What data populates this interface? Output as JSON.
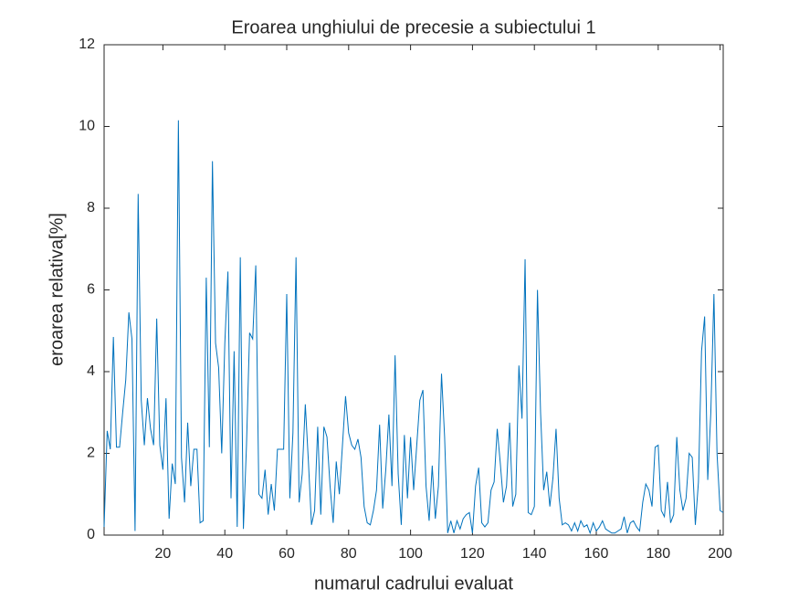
{
  "chart_data": {
    "type": "line",
    "title": "Eroarea unghiului de precesie a subiectului 1",
    "x_label": "numarul cadrului evaluat",
    "y_label": "eroarea relativa[%]",
    "xlim": [
      1,
      201
    ],
    "ylim": [
      0,
      12
    ],
    "xticks": [
      20,
      40,
      60,
      80,
      100,
      120,
      140,
      160,
      180,
      200
    ],
    "yticks": [
      0,
      2,
      4,
      6,
      8,
      10,
      12
    ],
    "grid": false,
    "series": [
      {
        "color": "#0072bd",
        "x": [
          1,
          2,
          3,
          4,
          5,
          6,
          7,
          8,
          9,
          10,
          11,
          12,
          13,
          14,
          15,
          16,
          17,
          18,
          19,
          20,
          21,
          22,
          23,
          24,
          25,
          26,
          27,
          28,
          29,
          30,
          31,
          32,
          33,
          34,
          35,
          36,
          37,
          38,
          39,
          40,
          41,
          42,
          43,
          44,
          45,
          46,
          47,
          48,
          49,
          50,
          51,
          52,
          53,
          54,
          55,
          56,
          57,
          58,
          59,
          60,
          61,
          62,
          63,
          64,
          65,
          66,
          67,
          68,
          69,
          70,
          71,
          72,
          73,
          74,
          75,
          76,
          77,
          78,
          79,
          80,
          81,
          82,
          83,
          84,
          85,
          86,
          87,
          88,
          89,
          90,
          91,
          92,
          93,
          94,
          95,
          96,
          97,
          98,
          99,
          100,
          101,
          102,
          103,
          104,
          105,
          106,
          107,
          108,
          109,
          110,
          111,
          112,
          113,
          114,
          115,
          116,
          117,
          118,
          119,
          120,
          121,
          122,
          123,
          124,
          125,
          126,
          127,
          128,
          129,
          130,
          131,
          132,
          133,
          134,
          135,
          136,
          137,
          138,
          139,
          140,
          141,
          142,
          143,
          144,
          145,
          146,
          147,
          148,
          149,
          150,
          151,
          152,
          153,
          154,
          155,
          156,
          157,
          158,
          159,
          160,
          161,
          162,
          163,
          164,
          165,
          166,
          167,
          168,
          169,
          170,
          171,
          172,
          173,
          174,
          175,
          176,
          177,
          178,
          179,
          180,
          181,
          182,
          183,
          184,
          185,
          186,
          187,
          188,
          189,
          190,
          191,
          192,
          193,
          194,
          195,
          196,
          197,
          198,
          199,
          200,
          201
        ],
        "values": [
          0.2,
          2.55,
          2.1,
          4.85,
          2.15,
          2.15,
          3,
          3.8,
          5.45,
          4.8,
          0.1,
          8.35,
          3.3,
          2.2,
          3.35,
          2.6,
          2.2,
          5.3,
          2.2,
          1.6,
          3.35,
          0.4,
          1.75,
          1.25,
          10.15,
          1.9,
          0.8,
          2.75,
          1.2,
          2.1,
          2.1,
          0.3,
          0.35,
          6.3,
          2.15,
          9.15,
          4.7,
          4.1,
          2,
          4.7,
          6.45,
          0.9,
          4.5,
          0.2,
          6.8,
          0.15,
          2.2,
          4.95,
          4.8,
          6.6,
          1,
          0.9,
          1.6,
          0.5,
          1.25,
          0.6,
          2.1,
          2.1,
          2.1,
          5.9,
          0.9,
          2.5,
          6.8,
          0.8,
          1.5,
          3.2,
          1.8,
          0.25,
          0.6,
          2.65,
          0.5,
          2.65,
          2.4,
          1.2,
          0.3,
          1.8,
          1,
          2.2,
          3.4,
          2.5,
          2.2,
          2.1,
          2.35,
          1.9,
          0.7,
          0.3,
          0.25,
          0.6,
          1.1,
          2.7,
          0.65,
          1.6,
          2.95,
          1.2,
          4.4,
          1.5,
          0.25,
          2.45,
          0.9,
          2.4,
          1.1,
          2.2,
          3.3,
          3.55,
          1.2,
          0.35,
          1.7,
          0.4,
          1.2,
          3.95,
          2.4,
          0.05,
          0.35,
          0.05,
          0.35,
          0.15,
          0.4,
          0.5,
          0.55,
          0.05,
          1.2,
          1.65,
          0.3,
          0.2,
          0.3,
          1.1,
          1.3,
          2.6,
          1.75,
          0.8,
          1.2,
          2.75,
          0.7,
          1,
          4.15,
          2.85,
          6.75,
          0.55,
          0.5,
          0.7,
          6,
          3,
          1.1,
          1.55,
          0.7,
          1.4,
          2.6,
          0.9,
          0.25,
          0.3,
          0.25,
          0.1,
          0.3,
          0.1,
          0.35,
          0.2,
          0.25,
          0.05,
          0.3,
          0.1,
          0.2,
          0.35,
          0.15,
          0.1,
          0.05,
          0.05,
          0.1,
          0.15,
          0.45,
          0.05,
          0.3,
          0.35,
          0.2,
          0.1,
          0.8,
          1.25,
          1.1,
          0.7,
          2.15,
          2.2,
          0.6,
          0.45,
          1.3,
          0.3,
          0.5,
          2.4,
          1.1,
          0.6,
          0.9,
          2,
          1.9,
          0.25,
          1.3,
          4.5,
          5.35,
          1.35,
          3,
          5.9,
          2,
          0.6,
          0.55
        ]
      }
    ]
  }
}
